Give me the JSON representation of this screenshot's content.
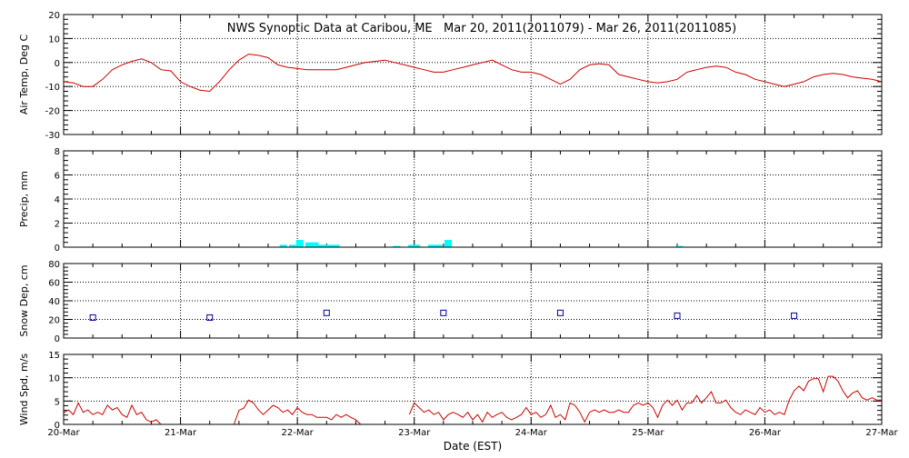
{
  "title": "NWS Synoptic Data at Caribou, ME   Mar 20, 2011(2011079) - Mar 26, 2011(2011085)",
  "chart_data": [
    {
      "type": "line",
      "ylabel": "Air Temp, Deg C",
      "ylim": [
        -30,
        20
      ],
      "yticks": [
        -30,
        -20,
        -10,
        0,
        10,
        20
      ],
      "color": "#cc0000",
      "x": [
        0.0,
        0.083,
        0.167,
        0.25,
        0.333,
        0.417,
        0.5,
        0.583,
        0.667,
        0.75,
        0.833,
        0.917,
        1.0,
        1.083,
        1.167,
        1.25,
        1.333,
        1.417,
        1.5,
        1.583,
        1.667,
        1.75,
        1.833,
        1.917,
        2.0,
        2.083,
        2.167,
        2.25,
        2.333,
        2.417,
        2.5,
        2.583,
        2.667,
        2.75,
        2.833,
        2.917,
        3.0,
        3.083,
        3.167,
        3.25,
        3.333,
        3.417,
        3.5,
        3.583,
        3.667,
        3.75,
        3.833,
        3.917,
        4.0,
        4.083,
        4.167,
        4.25,
        4.333,
        4.417,
        4.5,
        4.583,
        4.667,
        4.75,
        4.833,
        4.917,
        5.0,
        5.083,
        5.167,
        5.25,
        5.333,
        5.417,
        5.5,
        5.583,
        5.667,
        5.75,
        5.833,
        5.917,
        6.0,
        6.083,
        6.167,
        6.25,
        6.333,
        6.417,
        6.5,
        6.583,
        6.667,
        6.75,
        6.833,
        6.917,
        7.0
      ],
      "values": [
        -8,
        -8.5,
        -10,
        -10,
        -7,
        -3,
        -1,
        0.5,
        1.5,
        0,
        -3,
        -3.5,
        -8,
        -10,
        -11.5,
        -12,
        -8,
        -3,
        1,
        3.5,
        3,
        2,
        -1,
        -2,
        -2.5,
        -3,
        -3,
        -3,
        -3,
        -2,
        -1,
        0,
        0.5,
        1,
        0,
        -1,
        -2,
        -3,
        -4,
        -4,
        -3,
        -2,
        -1,
        0,
        1,
        -1,
        -3,
        -4,
        -4,
        -5,
        -7,
        -9,
        -7,
        -3,
        -1,
        -0.5,
        -1,
        -5,
        -6,
        -7,
        -8,
        -8.5,
        -8,
        -7,
        -4,
        -3,
        -2,
        -1.5,
        -2,
        -4,
        -5,
        -7,
        -8,
        -9,
        -10,
        -9,
        -8,
        -6,
        -5,
        -4.5,
        -5,
        -6,
        -6.5,
        -7,
        -8
      ]
    },
    {
      "type": "bar",
      "ylabel": "Precip, mm",
      "ylim": [
        0,
        8
      ],
      "yticks": [
        0,
        2,
        4,
        6,
        8
      ],
      "color": "#00ffff",
      "bars": [
        {
          "x": 1.88,
          "value": 0.2
        },
        {
          "x": 1.96,
          "value": 0.2
        },
        {
          "x": 2.02,
          "value": 0.6
        },
        {
          "x": 2.1,
          "value": 0.4
        },
        {
          "x": 2.15,
          "value": 0.4
        },
        {
          "x": 2.21,
          "value": 0.2
        },
        {
          "x": 2.27,
          "value": 0.2
        },
        {
          "x": 2.33,
          "value": 0.2
        },
        {
          "x": 2.85,
          "value": 0.1
        },
        {
          "x": 2.98,
          "value": 0.2
        },
        {
          "x": 3.02,
          "value": 0.2
        },
        {
          "x": 3.15,
          "value": 0.2
        },
        {
          "x": 3.21,
          "value": 0.2
        },
        {
          "x": 3.29,
          "value": 0.6
        },
        {
          "x": 5.27,
          "value": 0.1
        }
      ]
    },
    {
      "type": "scatter",
      "ylabel": "Snow Dep, cm",
      "ylim": [
        0,
        80
      ],
      "yticks": [
        0,
        20,
        40,
        60,
        80
      ],
      "color": "#000099",
      "x": [
        0.25,
        1.25,
        2.25,
        3.25,
        4.25,
        5.25,
        6.25
      ],
      "values": [
        22,
        22,
        27,
        27,
        27,
        24,
        24
      ]
    },
    {
      "type": "line",
      "ylabel": "Wind Spd, m/s",
      "ylim": [
        0,
        15
      ],
      "yticks": [
        0,
        5,
        10,
        15
      ],
      "color": "#cc0000",
      "segments": [
        {
          "x": [
            0.0,
            0.042,
            0.083,
            0.125,
            0.167,
            0.208,
            0.25,
            0.292,
            0.333,
            0.375,
            0.417,
            0.458,
            0.5,
            0.542,
            0.583,
            0.625,
            0.667,
            0.708,
            0.75,
            0.792,
            0.833
          ],
          "values": [
            2.5,
            3.1,
            2.1,
            4.6,
            2.6,
            3.1,
            2.1,
            2.6,
            2.1,
            4.1,
            3.1,
            3.6,
            2.1,
            1.5,
            4.1,
            2.1,
            2.6,
            1.0,
            0.5,
            1.0,
            0.0
          ]
        },
        {
          "x": [
            1.458,
            1.5,
            1.542,
            1.583,
            1.625,
            1.667,
            1.708,
            1.75,
            1.792,
            1.833,
            1.875,
            1.917,
            1.958,
            2.0,
            2.042,
            2.083,
            2.125,
            2.167,
            2.208,
            2.25,
            2.292,
            2.333,
            2.375,
            2.417,
            2.458,
            2.5,
            2.542
          ],
          "values": [
            0.0,
            3.0,
            3.5,
            5.2,
            4.6,
            3.1,
            2.1,
            3.1,
            4.1,
            3.6,
            2.6,
            3.1,
            2.1,
            3.6,
            2.6,
            2.1,
            2.1,
            1.5,
            1.5,
            1.5,
            1.0,
            2.1,
            1.5,
            2.1,
            1.5,
            1.0,
            0.0
          ]
        },
        {
          "x": [
            2.958,
            3.0,
            3.042,
            3.083,
            3.125,
            3.167,
            3.208,
            3.25,
            3.292,
            3.333,
            3.375,
            3.417,
            3.458,
            3.5,
            3.542,
            3.583,
            3.625,
            3.667,
            3.708,
            3.75,
            3.792,
            3.833,
            3.875,
            3.917,
            3.958,
            4.0,
            4.042,
            4.083,
            4.125,
            4.167,
            4.208,
            4.25,
            4.292,
            4.333,
            4.375,
            4.417,
            4.458,
            4.5,
            4.542,
            4.583,
            4.625,
            4.667,
            4.708,
            4.75,
            4.792,
            4.833,
            4.875,
            4.917,
            4.958,
            5.0,
            5.042,
            5.083,
            5.125,
            5.167,
            5.208,
            5.25,
            5.292,
            5.333,
            5.375,
            5.417,
            5.458,
            5.5,
            5.542,
            5.583,
            5.625,
            5.667,
            5.708,
            5.75,
            5.792,
            5.833,
            5.875,
            5.917,
            5.958,
            6.0,
            6.042,
            6.083,
            6.125,
            6.167,
            6.208,
            6.25,
            6.292,
            6.333,
            6.375,
            6.417,
            6.458,
            6.5,
            6.542,
            6.583,
            6.625,
            6.667,
            6.708,
            6.75,
            6.792,
            6.833,
            6.875,
            6.917,
            6.958,
            7.0
          ],
          "values": [
            2.1,
            4.6,
            3.6,
            2.6,
            3.1,
            2.1,
            2.6,
            1.0,
            2.1,
            2.6,
            2.1,
            1.5,
            2.6,
            1.0,
            2.1,
            0.5,
            2.6,
            1.5,
            2.1,
            2.6,
            1.5,
            1.0,
            1.5,
            2.1,
            3.6,
            2.1,
            2.6,
            1.5,
            2.1,
            4.1,
            1.5,
            2.1,
            1.0,
            4.6,
            4.1,
            2.6,
            0.5,
            2.6,
            3.1,
            2.6,
            3.1,
            2.6,
            2.6,
            3.1,
            2.6,
            2.6,
            4.1,
            4.6,
            4.1,
            4.6,
            3.6,
            1.5,
            4.1,
            5.2,
            4.1,
            5.2,
            3.1,
            4.6,
            4.6,
            6.2,
            4.6,
            5.7,
            7.0,
            4.6,
            4.6,
            5.2,
            3.6,
            2.6,
            2.1,
            3.1,
            2.6,
            2.1,
            3.6,
            2.6,
            3.1,
            2.1,
            2.6,
            2.1,
            5.2,
            7.2,
            8.2,
            7.2,
            9.3,
            9.8,
            9.8,
            7.0,
            10.3,
            10.3,
            9.3,
            7.2,
            5.7,
            6.7,
            7.2,
            5.7,
            5.2,
            5.7,
            5.2,
            5.2
          ]
        }
      ]
    }
  ],
  "x_axis": {
    "label": "Date (EST)",
    "xlim": [
      0,
      7
    ],
    "tick_labels": [
      "20-Mar",
      "21-Mar",
      "22-Mar",
      "23-Mar",
      "24-Mar",
      "25-Mar",
      "26-Mar",
      "27-Mar"
    ]
  }
}
